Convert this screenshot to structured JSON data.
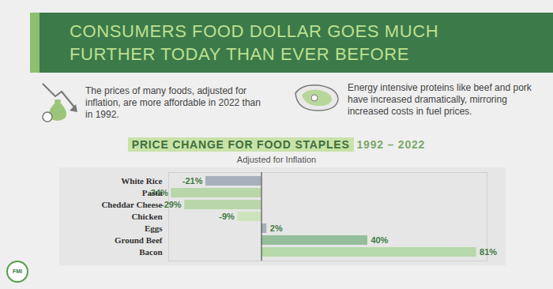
{
  "header": {
    "title_lines": [
      "CONSUMERS FOOD DOLLAR GOES MUCH",
      "FURTHER TODAY THAN EVER BEFORE"
    ],
    "notes": [
      "The prices of many foods, adjusted for inflation, are more affordable in 2022 than in 1992.",
      "Energy intensive proteins like beef and pork have increased dramatically, mirroring increased costs in fuel prices."
    ]
  },
  "logo": "FMI",
  "chart_data": {
    "type": "bar",
    "orientation": "horizontal",
    "title": "PRICE CHANGE FOR FOOD STAPLES",
    "title_period": "1992 – 2022",
    "subtitle": "Adjusted for Inflation",
    "categories": [
      "White Rice",
      "Pasta",
      "Cheddar Cheese",
      "Chicken",
      "Eggs",
      "Ground Beef",
      "Bacon"
    ],
    "values": [
      -21,
      -34,
      -29,
      -9,
      2,
      40,
      81
    ],
    "value_labels": [
      "-21%",
      "-34%",
      "-29%",
      "-9%",
      "2%",
      "40%",
      "81%"
    ],
    "colors": [
      "#a7afba",
      "#b9d6a9",
      "#b9d6a9",
      "#cde3bd",
      "#a7afba",
      "#93bf9b",
      "#b5d9a8"
    ],
    "xlim": [
      -35,
      85
    ],
    "xticks": [
      0
    ],
    "data_labels": true,
    "tick_labels": "y",
    "grid": false
  }
}
